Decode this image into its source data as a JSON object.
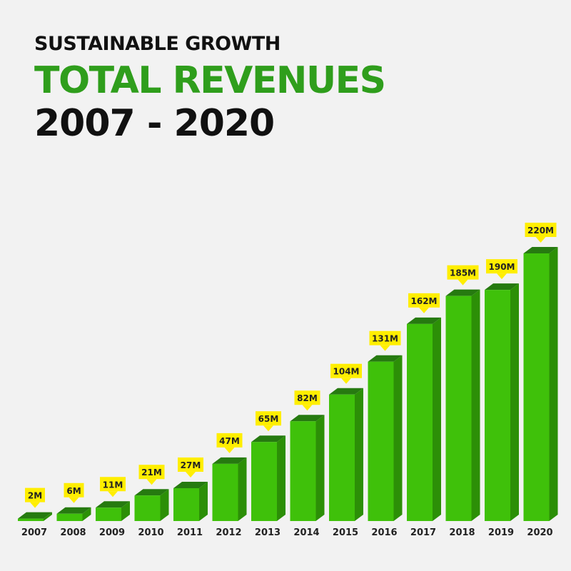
{
  "header": {
    "subtitle": "SUSTAINABLE GROWTH",
    "title": "TOTAL REVENUES",
    "range": "2007 - 2020"
  },
  "colors": {
    "bar_front": "#3fc10a",
    "bar_side": "#2c8f07",
    "bar_top": "#267a10",
    "label_bg": "#ffee00",
    "label_text": "#222222",
    "title_green": "#2f9e1c"
  },
  "chart_data": {
    "type": "bar",
    "categories": [
      "2007",
      "2008",
      "2009",
      "2010",
      "2011",
      "2012",
      "2013",
      "2014",
      "2015",
      "2016",
      "2017",
      "2018",
      "2019",
      "2020"
    ],
    "values": [
      2,
      6,
      11,
      21,
      27,
      47,
      65,
      82,
      104,
      131,
      162,
      185,
      190,
      220
    ],
    "data_labels": [
      "2M",
      "6M",
      "11M",
      "21M",
      "27M",
      "47M",
      "65M",
      "82M",
      "104M",
      "131M",
      "162M",
      "185M",
      "190M",
      "220M"
    ],
    "title": "TOTAL REVENUES",
    "subtitle": "SUSTAINABLE GROWTH",
    "xlabel": "",
    "ylabel": "",
    "unit": "M",
    "ylim": [
      0,
      220
    ],
    "grid": false,
    "legend": "none",
    "style": "3d-bars"
  }
}
